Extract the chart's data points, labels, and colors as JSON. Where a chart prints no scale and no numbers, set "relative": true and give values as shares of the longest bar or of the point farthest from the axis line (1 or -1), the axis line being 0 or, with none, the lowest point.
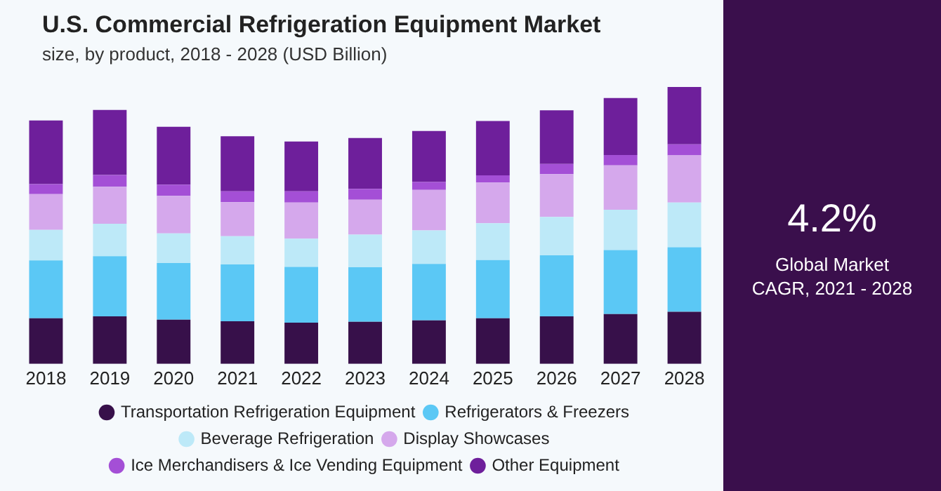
{
  "chart_data": {
    "type": "bar",
    "title": "U.S. Commercial Refrigeration Equipment Market",
    "subtitle": "size, by product, 2018 - 2028 (USD Billion)",
    "categories": [
      "2018",
      "2019",
      "2020",
      "2021",
      "2022",
      "2023",
      "2024",
      "2025",
      "2026",
      "2027",
      "2028"
    ],
    "stacked": true,
    "relative": true,
    "legend": "bottom",
    "grid": false,
    "series": [
      {
        "name": "Transportation Refrigeration Equipment",
        "color": "#37104a",
        "values": [
          0.165,
          0.172,
          0.16,
          0.154,
          0.149,
          0.152,
          0.157,
          0.165,
          0.172,
          0.18,
          0.188
        ]
      },
      {
        "name": "Refrigerators & Freezers",
        "color": "#5bc8f5",
        "values": [
          0.209,
          0.217,
          0.204,
          0.205,
          0.201,
          0.197,
          0.204,
          0.21,
          0.22,
          0.231,
          0.233
        ]
      },
      {
        "name": "Beverage Refrigeration",
        "color": "#bde9f8",
        "values": [
          0.11,
          0.117,
          0.107,
          0.102,
          0.102,
          0.118,
          0.121,
          0.133,
          0.139,
          0.146,
          0.162
        ]
      },
      {
        "name": "Display Showcases",
        "color": "#d5a8ec",
        "values": [
          0.129,
          0.134,
          0.136,
          0.123,
          0.131,
          0.126,
          0.146,
          0.147,
          0.154,
          0.16,
          0.17
        ]
      },
      {
        "name": "Ice Merchandisers & Ice Vending Equipment",
        "color": "#a44fd6",
        "values": [
          0.036,
          0.042,
          0.04,
          0.039,
          0.04,
          0.039,
          0.029,
          0.026,
          0.037,
          0.037,
          0.04
        ]
      },
      {
        "name": "Other Equipment",
        "color": "#6e1f9b",
        "values": [
          0.23,
          0.235,
          0.209,
          0.199,
          0.18,
          0.184,
          0.184,
          0.196,
          0.194,
          0.206,
          0.207
        ]
      }
    ],
    "annotations": [
      "4.2%",
      "Global Market CAGR, 2021 - 2028"
    ]
  }
}
